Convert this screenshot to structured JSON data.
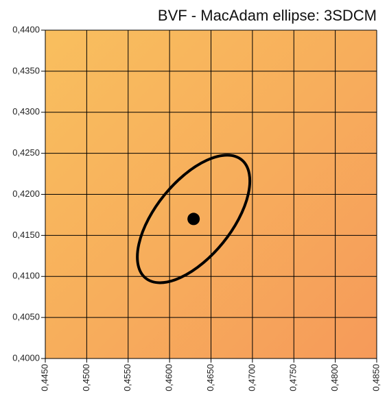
{
  "chart_data": {
    "type": "scatter",
    "title": "BVF - MacAdam ellipse: 3SDCM",
    "x": [
      0.4629
    ],
    "values": [
      0.417
    ],
    "color": "#000000",
    "ellipse": {
      "a": 0.0092,
      "b": 0.0046,
      "angle": 51
    },
    "xlim": [
      0.445,
      0.485
    ],
    "xticks": [
      {
        "value": 0.445,
        "label": "0,4450"
      },
      {
        "value": 0.45,
        "label": "0,4500"
      },
      {
        "value": 0.455,
        "label": "0,4550"
      },
      {
        "value": 0.46,
        "label": "0,4600"
      },
      {
        "value": 0.465,
        "label": "0,4650"
      },
      {
        "value": 0.47,
        "label": "0,4700"
      },
      {
        "value": 0.475,
        "label": "0,4750"
      },
      {
        "value": 0.48,
        "label": "0,4800"
      },
      {
        "value": 0.485,
        "label": "0,4850"
      }
    ],
    "ylim": [
      0.4,
      0.44
    ],
    "yticks": [
      {
        "value": 0.4,
        "label": "0,4000"
      },
      {
        "value": 0.405,
        "label": "0,4050"
      },
      {
        "value": 0.41,
        "label": "0,4100"
      },
      {
        "value": 0.415,
        "label": "0,4150"
      },
      {
        "value": 0.42,
        "label": "0,4200"
      },
      {
        "value": 0.425,
        "label": "0,4250"
      },
      {
        "value": 0.43,
        "label": "0,4300"
      },
      {
        "value": 0.435,
        "label": "0,4350"
      },
      {
        "value": 0.44,
        "label": "0,4400"
      }
    ],
    "grid": true
  }
}
